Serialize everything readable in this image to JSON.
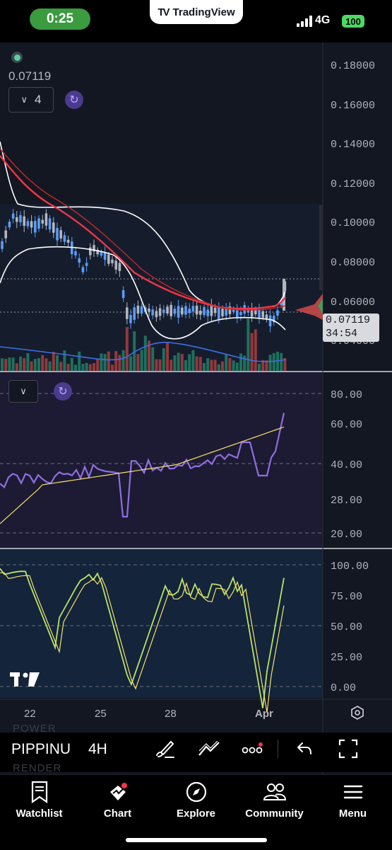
{
  "status_bar": {
    "time": "0:25",
    "brand": "TradingView",
    "network": "4G",
    "battery": "100"
  },
  "chart": {
    "current_price_label": "0.07119",
    "layers_count": "4",
    "price_axis": [
      "0.18000",
      "0.16000",
      "0.14000",
      "0.12000",
      "0.10000",
      "0.08000",
      "0.06000",
      "0.04000"
    ],
    "price_tag": {
      "price": "0.07119",
      "countdown": "34:54"
    },
    "rsi_axis": [
      "80.00",
      "60.00",
      "40.00",
      "28.00",
      "20.00"
    ],
    "stoch_axis": [
      "100.00",
      "75.00",
      "50.00",
      "25.00",
      "0.00"
    ],
    "date_axis": [
      "22",
      "25",
      "28",
      "Apr"
    ],
    "colors": {
      "background": "#131722",
      "candle_up": "#5b9cf6",
      "candle_down": "#b2b5be",
      "ma_fast": "#f23645",
      "ma_slow": "#c62828",
      "bollinger": "#ffffff",
      "rsi": "#8f6fe0",
      "rsi_ma": "#f7e06a",
      "stoch_k": "#b7e36a",
      "stoch_d": "#f7e06a",
      "volume_up": "#1f7a63",
      "volume_down": "#a13c3c"
    }
  },
  "toolbar": {
    "symbol": "PIPPINU",
    "interval": "4H",
    "ghost_top": "POWER",
    "ghost_bottom": "RENDER"
  },
  "tabs": [
    {
      "label": "Watchlist",
      "icon": "bookmark-icon"
    },
    {
      "label": "Chart",
      "icon": "chart-icon"
    },
    {
      "label": "Explore",
      "icon": "compass-icon"
    },
    {
      "label": "Community",
      "icon": "people-icon"
    },
    {
      "label": "Menu",
      "icon": "menu-icon"
    }
  ]
}
